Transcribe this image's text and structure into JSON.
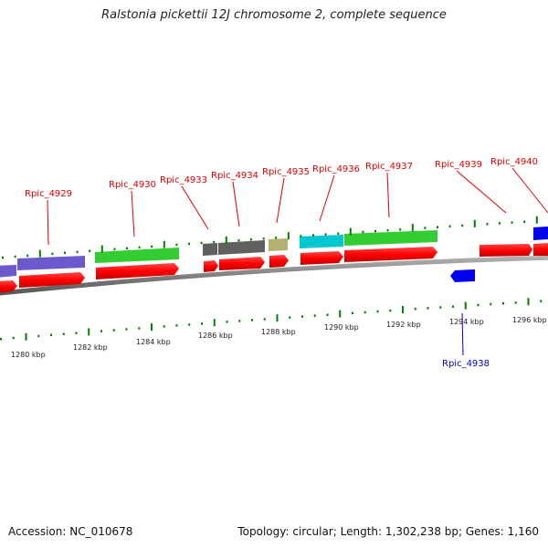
{
  "title": "Ralstonia pickettii 12J chromosome 2, complete sequence",
  "footer": {
    "accession": "Accession: NC_010678",
    "summary": "Topology: circular; Length: 1,302,238 bp; Genes: 1,160"
  },
  "colors": {
    "backbone": "#808080",
    "cds": "#ff0000",
    "tick": "#008000",
    "label_forward": "#e00000",
    "label_reverse": "#0000cc",
    "cog_purple": "#6a5acd",
    "cog_green": "#33cc33",
    "cog_gray": "#606060",
    "cog_khaki": "#b5b070",
    "cog_cyan": "#00c8d0",
    "cog_blue": "#0000ee"
  },
  "scale": {
    "unit": "kbp",
    "labels": [
      "1280 kbp",
      "1282 kbp",
      "1284 kbp",
      "1286 kbp",
      "1288 kbp",
      "1290 kbp",
      "1292 kbp",
      "1294 kbp",
      "1296 kbp"
    ]
  },
  "genes": [
    {
      "label": "Rpic_4929",
      "strand": "forward"
    },
    {
      "label": "Rpic_4930",
      "strand": "forward"
    },
    {
      "label": "Rpic_4933",
      "strand": "forward"
    },
    {
      "label": "Rpic_4934",
      "strand": "forward"
    },
    {
      "label": "Rpic_4935",
      "strand": "forward"
    },
    {
      "label": "Rpic_4936",
      "strand": "forward"
    },
    {
      "label": "Rpic_4937",
      "strand": "forward"
    },
    {
      "label": "Rpic_4938",
      "strand": "reverse"
    },
    {
      "label": "Rpic_4939",
      "strand": "forward"
    },
    {
      "label": "Rpic_4940",
      "strand": "forward"
    }
  ]
}
